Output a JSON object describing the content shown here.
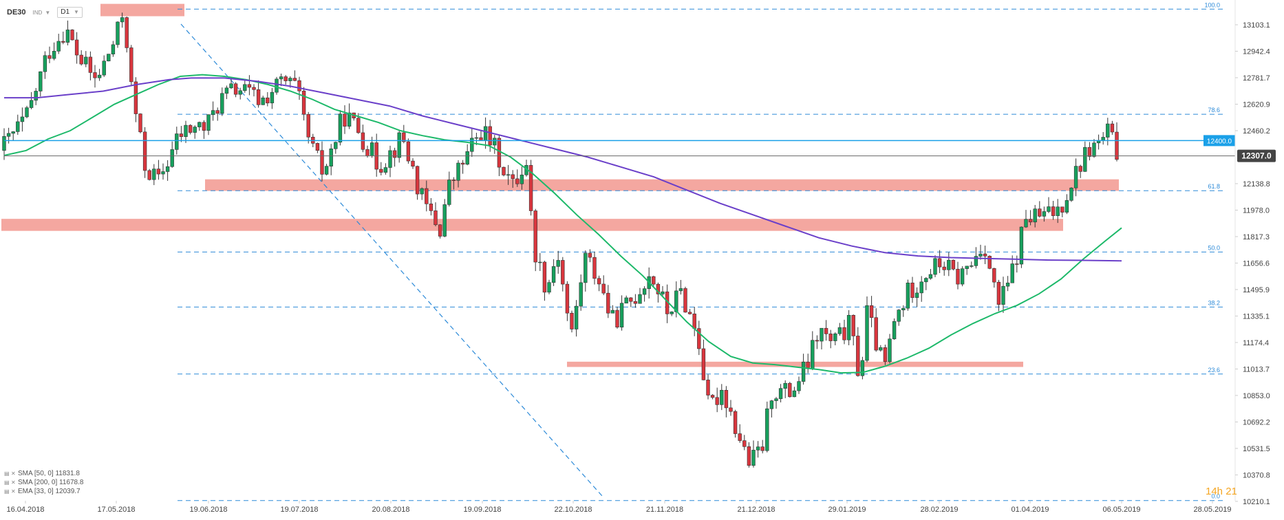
{
  "header": {
    "symbol": "DE30",
    "symbol_type": "IND",
    "timeframe": "D1"
  },
  "indicators": [
    {
      "label": "SMA [50, 0] 11831.8",
      "color": "#1db96a"
    },
    {
      "label": "SMA [200, 0] 11678.8",
      "color": "#6a3fc9"
    },
    {
      "label": "EMA [33, 0] 12039.7",
      "color": "#444444"
    }
  ],
  "countdown": "14h 21",
  "chart_data": {
    "type": "candlestick",
    "instrument": "DE30",
    "timeframe": "D1",
    "ylim": [
      10130,
      13240
    ],
    "y_ticks": [
      "13103.1",
      "12942.4",
      "12781.7",
      "12620.9",
      "12460.2",
      "12138.8",
      "11978.0",
      "11817.3",
      "11656.6",
      "11495.9",
      "11335.1",
      "11174.4",
      "11013.7",
      "10853.0",
      "10692.2",
      "10531.5",
      "10370.8",
      "10210.1"
    ],
    "x_ticks": [
      "16.04.2018",
      "17.05.2018",
      "19.06.2018",
      "19.07.2018",
      "20.08.2018",
      "19.09.2018",
      "22.10.2018",
      "21.11.2018",
      "21.12.2018",
      "29.01.2019",
      "28.02.2019",
      "01.04.2019",
      "06.05.2019",
      "28.05.2019"
    ],
    "current_price": "12307.0",
    "level_label": "12400.0",
    "level_value": 12400,
    "fib_levels": [
      {
        "label": "100.0",
        "value": 13198
      },
      {
        "label": "78.6",
        "value": 12560
      },
      {
        "label": "61.8",
        "value": 12096
      },
      {
        "label": "50.0",
        "value": 11724
      },
      {
        "label": "38.2",
        "value": 11390
      },
      {
        "label": "23.6",
        "value": 10983
      },
      {
        "label": "0.0",
        "value": 10215
      }
    ],
    "zones": [
      {
        "from": 13155,
        "to": 13230
      },
      {
        "from": 12095,
        "to": 12165
      },
      {
        "from": 11852,
        "to": 11925
      },
      {
        "from": 11026,
        "to": 11058
      }
    ],
    "series": [
      {
        "name": "SMA 50",
        "color": "#1db96a",
        "points": [
          [
            0,
            12310
          ],
          [
            20,
            12340
          ],
          [
            40,
            12410
          ],
          [
            60,
            12460
          ],
          [
            80,
            12540
          ],
          [
            100,
            12620
          ],
          [
            120,
            12680
          ],
          [
            140,
            12740
          ],
          [
            160,
            12790
          ],
          [
            180,
            12800
          ],
          [
            200,
            12790
          ],
          [
            220,
            12770
          ],
          [
            240,
            12740
          ],
          [
            260,
            12700
          ],
          [
            280,
            12650
          ],
          [
            300,
            12590
          ],
          [
            320,
            12550
          ],
          [
            340,
            12510
          ],
          [
            360,
            12460
          ],
          [
            380,
            12430
          ],
          [
            400,
            12405
          ],
          [
            420,
            12390
          ],
          [
            440,
            12370
          ],
          [
            460,
            12300
          ],
          [
            480,
            12200
          ],
          [
            500,
            12080
          ],
          [
            520,
            11950
          ],
          [
            540,
            11830
          ],
          [
            560,
            11700
          ],
          [
            580,
            11580
          ],
          [
            600,
            11440
          ],
          [
            620,
            11300
          ],
          [
            640,
            11180
          ],
          [
            660,
            11090
          ],
          [
            680,
            11050
          ],
          [
            700,
            11040
          ],
          [
            720,
            11025
          ],
          [
            740,
            11010
          ],
          [
            760,
            10990
          ],
          [
            780,
            10993
          ],
          [
            800,
            11030
          ],
          [
            820,
            11080
          ],
          [
            840,
            11140
          ],
          [
            860,
            11220
          ],
          [
            880,
            11290
          ],
          [
            900,
            11350
          ],
          [
            920,
            11400
          ],
          [
            940,
            11470
          ],
          [
            960,
            11560
          ],
          [
            980,
            11680
          ],
          [
            1000,
            11790
          ],
          [
            1015,
            11870
          ]
        ]
      },
      {
        "name": "SMA 200",
        "color": "#6a3fc9",
        "points": [
          [
            0,
            12660
          ],
          [
            30,
            12660
          ],
          [
            60,
            12680
          ],
          [
            90,
            12700
          ],
          [
            120,
            12740
          ],
          [
            150,
            12770
          ],
          [
            170,
            12780
          ],
          [
            200,
            12780
          ],
          [
            230,
            12760
          ],
          [
            260,
            12730
          ],
          [
            290,
            12690
          ],
          [
            320,
            12650
          ],
          [
            350,
            12610
          ],
          [
            380,
            12550
          ],
          [
            410,
            12500
          ],
          [
            440,
            12450
          ],
          [
            470,
            12400
          ],
          [
            500,
            12350
          ],
          [
            530,
            12300
          ],
          [
            560,
            12240
          ],
          [
            590,
            12180
          ],
          [
            620,
            12100
          ],
          [
            650,
            12020
          ],
          [
            680,
            11950
          ],
          [
            710,
            11880
          ],
          [
            740,
            11810
          ],
          [
            770,
            11760
          ],
          [
            800,
            11720
          ],
          [
            830,
            11700
          ],
          [
            860,
            11690
          ],
          [
            890,
            11685
          ],
          [
            920,
            11680
          ],
          [
            950,
            11675
          ],
          [
            980,
            11673
          ],
          [
            1015,
            11670
          ]
        ]
      }
    ]
  }
}
